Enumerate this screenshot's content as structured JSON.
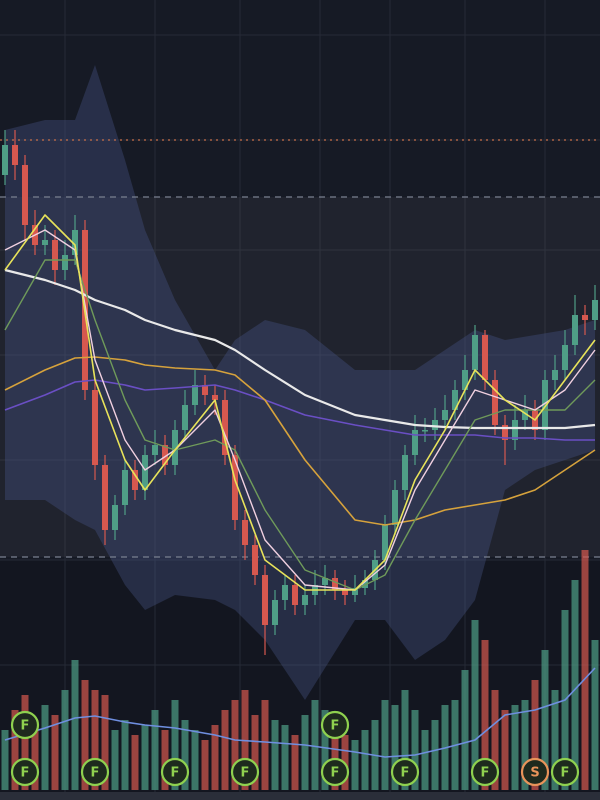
{
  "chart_data": {
    "type": "candlestick",
    "ylim": [
      -120,
      680
    ],
    "up_color": "#4f9e86",
    "down_color": "#d6584f",
    "open": [
      505,
      535,
      515,
      455,
      435,
      440,
      410,
      425,
      450,
      290,
      215,
      150,
      175,
      210,
      190,
      225,
      235,
      215,
      250,
      275,
      295,
      285,
      280,
      225,
      160,
      135,
      105,
      55,
      80,
      95,
      75,
      85,
      95,
      102,
      90,
      85,
      92,
      100,
      120,
      155,
      190,
      225,
      250,
      250,
      260,
      270,
      290,
      310,
      345,
      300,
      255,
      240,
      260,
      270,
      250,
      300,
      310,
      335,
      365,
      360
    ],
    "high": [
      550,
      550,
      525,
      470,
      455,
      450,
      440,
      465,
      460,
      300,
      225,
      185,
      220,
      220,
      235,
      250,
      245,
      260,
      290,
      310,
      305,
      295,
      290,
      235,
      170,
      145,
      115,
      90,
      105,
      105,
      95,
      110,
      115,
      110,
      100,
      105,
      110,
      130,
      165,
      200,
      235,
      265,
      262,
      272,
      285,
      300,
      325,
      355,
      350,
      310,
      265,
      275,
      285,
      280,
      310,
      325,
      350,
      385,
      375,
      395
    ],
    "low": [
      495,
      500,
      440,
      425,
      425,
      395,
      400,
      415,
      280,
      200,
      135,
      140,
      165,
      180,
      180,
      215,
      205,
      205,
      240,
      265,
      275,
      265,
      215,
      150,
      120,
      95,
      25,
      45,
      70,
      65,
      65,
      75,
      85,
      80,
      75,
      78,
      85,
      90,
      110,
      145,
      180,
      215,
      238,
      240,
      250,
      260,
      280,
      300,
      290,
      245,
      215,
      230,
      250,
      240,
      240,
      290,
      300,
      325,
      345,
      350
    ],
    "close": [
      535,
      515,
      455,
      435,
      440,
      410,
      425,
      450,
      290,
      215,
      150,
      175,
      210,
      190,
      225,
      235,
      215,
      250,
      275,
      295,
      285,
      280,
      225,
      160,
      135,
      105,
      55,
      80,
      95,
      75,
      85,
      95,
      102,
      90,
      85,
      92,
      100,
      120,
      155,
      190,
      225,
      250,
      250,
      260,
      270,
      290,
      310,
      345,
      300,
      255,
      240,
      260,
      270,
      250,
      300,
      310,
      335,
      365,
      360,
      380
    ],
    "band": {
      "color": "#4a5a8c",
      "x": [
        0,
        4,
        7,
        9,
        12,
        14,
        17,
        21,
        23,
        26,
        30,
        35,
        38,
        41,
        44,
        47,
        50,
        53,
        56,
        59
      ],
      "upper": [
        550,
        560,
        560,
        615,
        520,
        450,
        380,
        310,
        340,
        360,
        350,
        310,
        310,
        310,
        330,
        350,
        340,
        345,
        350,
        360
      ],
      "lower": [
        180,
        180,
        160,
        150,
        95,
        70,
        85,
        80,
        70,
        40,
        -20,
        60,
        60,
        20,
        40,
        80,
        190,
        210,
        220,
        230
      ]
    },
    "series": [
      {
        "color": "#e9e9e9",
        "width": 2.2,
        "x": [
          0,
          4,
          7,
          9,
          12,
          14,
          17,
          21,
          23,
          26,
          30,
          35,
          38,
          41,
          44,
          47,
          50,
          53,
          56,
          59
        ],
        "values": [
          410,
          400,
          390,
          380,
          370,
          360,
          350,
          340,
          330,
          310,
          285,
          265,
          260,
          255,
          253,
          252,
          252,
          252,
          252,
          255
        ]
      },
      {
        "color": "#6a4fc4",
        "width": 1.6,
        "x": [
          0,
          4,
          7,
          9,
          12,
          14,
          17,
          21,
          23,
          26,
          30,
          35,
          38,
          41,
          44,
          47,
          50,
          53,
          56,
          59
        ],
        "values": [
          270,
          285,
          298,
          300,
          295,
          290,
          292,
          295,
          290,
          280,
          265,
          255,
          250,
          245,
          245,
          245,
          242,
          242,
          240,
          240
        ]
      },
      {
        "color": "#d6a23c",
        "width": 1.6,
        "x": [
          0,
          4,
          7,
          9,
          12,
          14,
          17,
          21,
          23,
          26,
          30,
          35,
          38,
          41,
          44,
          47,
          50,
          53,
          56,
          59
        ],
        "values": [
          290,
          310,
          322,
          323,
          320,
          315,
          312,
          310,
          305,
          280,
          220,
          160,
          155,
          160,
          170,
          175,
          180,
          190,
          210,
          230
        ]
      },
      {
        "color": "#6f9a5a",
        "width": 1.4,
        "x": [
          0,
          4,
          7,
          9,
          12,
          14,
          17,
          21,
          23,
          26,
          30,
          35,
          38,
          41,
          44,
          47,
          50,
          53,
          56,
          59
        ],
        "values": [
          350,
          420,
          420,
          360,
          280,
          240,
          230,
          240,
          230,
          170,
          110,
          90,
          105,
          160,
          210,
          260,
          270,
          270,
          270,
          300
        ]
      },
      {
        "color": "#f0d0e0",
        "width": 1.4,
        "x": [
          0,
          4,
          7,
          9,
          12,
          14,
          17,
          21,
          23,
          26,
          30,
          35,
          38,
          41,
          44,
          47,
          50,
          53,
          56,
          59
        ],
        "values": [
          430,
          450,
          430,
          320,
          240,
          210,
          230,
          270,
          220,
          140,
          95,
          90,
          115,
          190,
          240,
          290,
          280,
          270,
          290,
          330
        ]
      },
      {
        "color": "#e8e35a",
        "width": 1.6,
        "x": [
          0,
          4,
          7,
          9,
          12,
          14,
          17,
          21,
          23,
          26,
          30,
          35,
          38,
          41,
          44,
          47,
          50,
          53,
          56,
          59
        ],
        "values": [
          410,
          465,
          435,
          300,
          220,
          190,
          230,
          280,
          200,
          120,
          90,
          90,
          120,
          200,
          250,
          310,
          280,
          260,
          300,
          340
        ]
      }
    ],
    "levels": [
      {
        "value": 540,
        "color": "#c8704a",
        "dash": "2 4"
      },
      {
        "value": 483,
        "color": "#7a8090",
        "dash": "6 5"
      },
      {
        "value": 123,
        "color": "#7a8090",
        "dash": "6 5"
      }
    ],
    "zone": [
      123,
      483
    ],
    "vlim": [
      0,
      240
    ],
    "volume": [
      60,
      80,
      95,
      70,
      85,
      75,
      100,
      130,
      110,
      100,
      95,
      60,
      70,
      55,
      65,
      80,
      60,
      90,
      70,
      60,
      50,
      65,
      80,
      90,
      100,
      75,
      90,
      70,
      65,
      55,
      75,
      90,
      80,
      60,
      55,
      50,
      60,
      70,
      90,
      85,
      100,
      80,
      60,
      70,
      85,
      90,
      120,
      170,
      150,
      100,
      80,
      85,
      90,
      110,
      140,
      100,
      180,
      210,
      240,
      150
    ],
    "volume_ma": {
      "color": "#6f8fe0",
      "x": [
        0,
        4,
        7,
        9,
        12,
        14,
        17,
        21,
        23,
        26,
        30,
        35,
        38,
        41,
        44,
        47,
        50,
        53,
        56,
        59
      ],
      "values": [
        50,
        62,
        72,
        74,
        68,
        65,
        62,
        55,
        50,
        48,
        45,
        38,
        33,
        35,
        42,
        50,
        75,
        80,
        90,
        122
      ]
    },
    "markers": [
      {
        "x": 2,
        "label": "F",
        "color": "#8fd14f"
      },
      {
        "x": 2,
        "label": "F",
        "color": "#8fd14f"
      },
      {
        "x": 9,
        "label": "F",
        "color": "#8fd14f"
      },
      {
        "x": 17,
        "label": "F",
        "color": "#8fd14f"
      },
      {
        "x": 24,
        "label": "F",
        "color": "#8fd14f"
      },
      {
        "x": 33,
        "label": "F",
        "color": "#8fd14f"
      },
      {
        "x": 33,
        "label": "F",
        "color": "#8fd14f"
      },
      {
        "x": 40,
        "label": "F",
        "color": "#8fd14f"
      },
      {
        "x": 48,
        "label": "F",
        "color": "#8fd14f"
      },
      {
        "x": 53,
        "label": "S",
        "color": "#e8945a"
      },
      {
        "x": 56,
        "label": "F",
        "color": "#8fd14f"
      }
    ]
  }
}
